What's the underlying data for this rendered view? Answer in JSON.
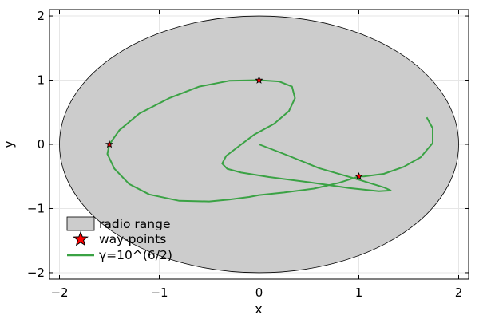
{
  "chart_data": {
    "type": "line",
    "xlabel": "x",
    "ylabel": "y",
    "xlim": [
      -2.1,
      2.1
    ],
    "ylim": [
      -2.1,
      2.1
    ],
    "x_ticks": [
      -2,
      -1,
      0,
      1,
      2
    ],
    "y_ticks": [
      -2,
      -1,
      0,
      1,
      2
    ],
    "x_tick_labels": [
      "−2",
      "−1",
      "0",
      "1",
      "2"
    ],
    "y_tick_labels": [
      "−2",
      "−1",
      "0",
      "1",
      "2"
    ],
    "grid": true,
    "legend_position": "bottom-left",
    "radio_range": {
      "name": "radio range",
      "center": [
        0,
        0
      ],
      "rx": 2.0,
      "ry": 2.0,
      "fill_color": "#cccccc"
    },
    "waypoints": {
      "name": "way-points",
      "color": "#ff0000",
      "points": [
        [
          -1.5,
          0
        ],
        [
          0,
          1
        ],
        [
          1,
          -0.5
        ]
      ]
    },
    "series": [
      {
        "name": "γ=10^(6/2)",
        "color": "#3aa244",
        "x": [
          1.68,
          1.74,
          1.74,
          1.62,
          1.45,
          1.25,
          1.05,
          1.0,
          0.8,
          0.55,
          0.25,
          0.0,
          -0.1,
          -0.3,
          -0.5,
          -0.8,
          -1.1,
          -1.3,
          -1.45,
          -1.52,
          -1.5,
          -1.4,
          -1.2,
          -0.9,
          -0.6,
          -0.3,
          0.0,
          0.2,
          0.33,
          0.36,
          0.3,
          0.15,
          -0.05,
          -0.22,
          -0.33,
          -0.37,
          -0.32,
          -0.18,
          0.1,
          0.5,
          0.9,
          1.2,
          1.32,
          1.25,
          1.0,
          0.6,
          0.3,
          0.0
        ],
        "y": [
          0.42,
          0.25,
          0.02,
          -0.2,
          -0.35,
          -0.46,
          -0.5,
          -0.5,
          -0.6,
          -0.69,
          -0.75,
          -0.79,
          -0.82,
          -0.86,
          -0.89,
          -0.88,
          -0.78,
          -0.62,
          -0.38,
          -0.15,
          0.0,
          0.22,
          0.48,
          0.72,
          0.9,
          0.99,
          1.0,
          0.98,
          0.9,
          0.72,
          0.52,
          0.32,
          0.15,
          -0.05,
          -0.18,
          -0.3,
          -0.38,
          -0.44,
          -0.51,
          -0.59,
          -0.68,
          -0.73,
          -0.72,
          -0.67,
          -0.55,
          -0.37,
          -0.18,
          0.0
        ]
      }
    ]
  }
}
